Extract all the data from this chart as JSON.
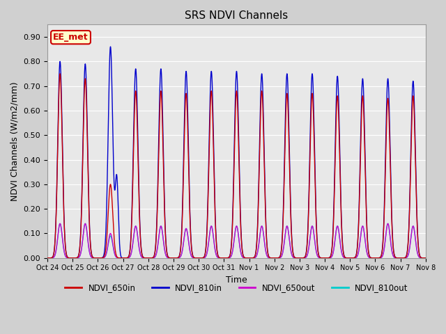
{
  "title": "SRS NDVI Channels",
  "xlabel": "Time",
  "ylabel": "NDVI Channels (W/m2/mm)",
  "ylim": [
    0.0,
    0.95
  ],
  "yticks": [
    0.0,
    0.1,
    0.2,
    0.3,
    0.4,
    0.5,
    0.6,
    0.7,
    0.8,
    0.9
  ],
  "fig_bg_color": "#d0d0d0",
  "plot_bg_color": "#e8e8e8",
  "annotation_text": "EE_met",
  "annotation_bg": "#ffffcc",
  "annotation_edge": "#cc0000",
  "lines": {
    "NDVI_650in": {
      "color": "#cc0000",
      "lw": 1.0
    },
    "NDVI_810in": {
      "color": "#0000cc",
      "lw": 1.0
    },
    "NDVI_650out": {
      "color": "#cc00cc",
      "lw": 1.0
    },
    "NDVI_810out": {
      "color": "#00cccc",
      "lw": 1.0
    }
  },
  "day_peaks_650in": [
    0.75,
    0.73,
    0.3,
    0.68,
    0.68,
    0.67,
    0.68,
    0.68,
    0.68,
    0.67,
    0.67,
    0.66,
    0.66,
    0.65,
    0.66
  ],
  "day_peaks_810in": [
    0.8,
    0.79,
    0.86,
    0.77,
    0.77,
    0.76,
    0.76,
    0.76,
    0.75,
    0.75,
    0.75,
    0.74,
    0.73,
    0.73,
    0.72
  ],
  "day_peaks_650out": [
    0.14,
    0.14,
    0.1,
    0.13,
    0.13,
    0.12,
    0.13,
    0.13,
    0.13,
    0.13,
    0.13,
    0.13,
    0.13,
    0.14,
    0.13
  ],
  "day_peaks_810out": [
    0.14,
    0.14,
    0.09,
    0.13,
    0.13,
    0.12,
    0.13,
    0.13,
    0.13,
    0.13,
    0.13,
    0.13,
    0.13,
    0.14,
    0.13
  ],
  "special_day_idx": 2,
  "special_810in_secondary": 0.32,
  "num_days": 15,
  "xtick_labels": [
    "Oct 24",
    "Oct 25",
    "Oct 26",
    "Oct 27",
    "Oct 28",
    "Oct 29",
    "Oct 30",
    "Oct 31",
    "Nov 1",
    "Nov 2",
    "Nov 3",
    "Nov 4",
    "Nov 5",
    "Nov 6",
    "Nov 7",
    "Nov 8"
  ],
  "xtick_positions": [
    0,
    1,
    2,
    3,
    4,
    5,
    6,
    7,
    8,
    9,
    10,
    11,
    12,
    13,
    14,
    15
  ]
}
